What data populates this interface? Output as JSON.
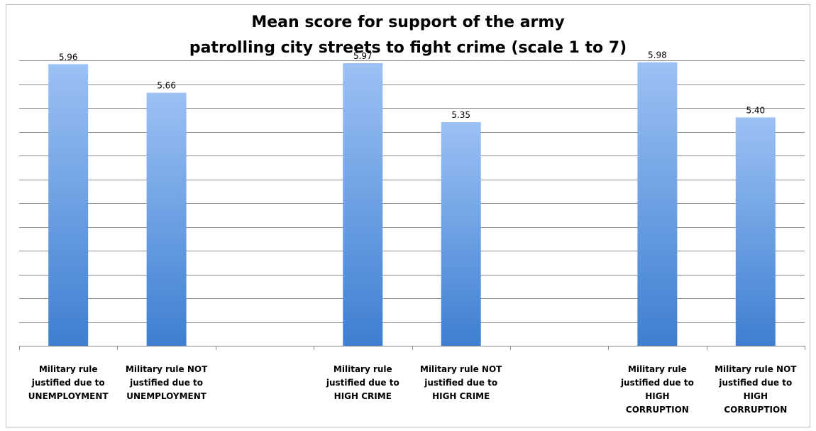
{
  "chart_data": {
    "type": "bar",
    "title": [
      "Mean score for support of the army",
      "patrolling city streets to fight crime (scale 1 to 7)"
    ],
    "xlabel": "",
    "ylabel": "",
    "ylim": [
      3.0,
      6.2
    ],
    "y_gridline_step": 0.25,
    "grid": true,
    "legend": "none",
    "categories": [
      [
        "Military rule",
        "justified due to",
        "UNEMPLOYMENT"
      ],
      [
        "Military rule NOT",
        "justified due to",
        "UNEMPLOYMENT"
      ],
      [
        ""
      ],
      [
        "Military rule",
        "justified due to",
        "HIGH CRIME"
      ],
      [
        "Military rule NOT",
        "justified due to",
        "HIGH CRIME"
      ],
      [
        ""
      ],
      [
        "Military rule",
        "justified due to",
        "HIGH",
        "CORRUPTION"
      ],
      [
        "Military rule NOT",
        "justified due to",
        "HIGH",
        "CORRUPTION"
      ]
    ],
    "values": [
      5.96,
      5.66,
      null,
      5.97,
      5.35,
      null,
      5.98,
      5.4
    ],
    "data_labels": [
      "5.96",
      "5.66",
      "",
      "5.97",
      "5.35",
      "",
      "5.98",
      "5.40"
    ],
    "colors": {
      "bar_top": "#9cc1f5",
      "bar_bottom": "#3e7fd1",
      "grid": "#8c8c8c",
      "axis": "#8c8c8c"
    }
  }
}
